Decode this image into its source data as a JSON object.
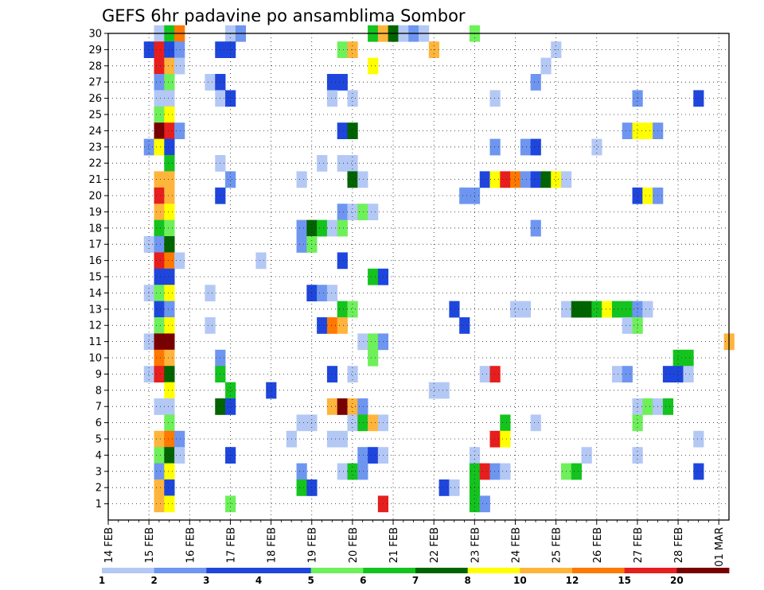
{
  "chart_data": {
    "type": "heatmap",
    "title": "GEFS 6hr padavine po ansamblima Sombor",
    "y_members": [
      1,
      30
    ],
    "x_start": "2018-02-14 00:00",
    "x_end": "2018-03-01 06:00",
    "x_ticks": [
      "14 FEB",
      "15 FEB",
      "16 FEB",
      "17 FEB",
      "18 FEB",
      "19 FEB",
      "20 FEB",
      "21 FEB",
      "22 FEB",
      "23 FEB",
      "24 FEB",
      "25 FEB",
      "26 FEB",
      "27 FEB",
      "28 FEB",
      "01 MAR"
    ],
    "y_ticks": [
      "1",
      "2",
      "3",
      "4",
      "5",
      "6",
      "7",
      "8",
      "9",
      "10",
      "11",
      "12",
      "13",
      "14",
      "15",
      "16",
      "17",
      "18",
      "19",
      "20",
      "21",
      "22",
      "23",
      "24",
      "25",
      "26",
      "27",
      "28",
      "29",
      "30"
    ],
    "grid": "dotted",
    "legend": {
      "placement": "bottom",
      "labels": [
        "1",
        "2",
        "3",
        "4",
        "5",
        "6",
        "7",
        "8",
        "10",
        "12",
        "15",
        "20"
      ],
      "colors": [
        "#b4c8f5",
        "#6e96f0",
        "#1e46dc",
        "#1e46dc",
        "#6ef05a",
        "#14c31e",
        "#006400",
        "#ffff00",
        "#ffb43c",
        "#ff7800",
        "#e61e1e",
        "#780000"
      ]
    },
    "level_colors": {
      "1": "#b4c8f5",
      "2": "#6e96f0",
      "3": "#1e46dc",
      "5": "#6ef05a",
      "6": "#14c31e",
      "7": "#006400",
      "8": "#ffff00",
      "10": "#ffb43c",
      "12": "#ff7800",
      "15": "#e61e1e",
      "20": "#780000"
    },
    "cells": [
      {
        "m": 30,
        "s": [
          "15 06",
          1
        ],
        "c": [
          [
            "15 06",
            1
          ],
          [
            "15 12",
            6
          ],
          [
            "15 18",
            12
          ],
          [
            "17 00",
            1
          ],
          [
            "17 06",
            2
          ],
          [
            "20 12",
            6
          ],
          [
            "20 18",
            10
          ],
          [
            "21 00",
            7
          ],
          [
            "21 06",
            1
          ],
          [
            "21 12",
            2
          ],
          [
            "21 18",
            1
          ],
          [
            "23 00",
            5
          ]
        ]
      },
      {
        "m": 29,
        "c": [
          [
            "15 00",
            3
          ],
          [
            "15 06",
            15
          ],
          [
            "15 12",
            3
          ],
          [
            "15 18",
            2
          ],
          [
            "16 18",
            3
          ],
          [
            "17 00",
            3
          ],
          [
            "19 18",
            5
          ],
          [
            "20 00",
            10
          ],
          [
            "22 00",
            10
          ],
          [
            "25 00",
            1
          ]
        ]
      },
      {
        "m": 28,
        "c": [
          [
            "15 06",
            15
          ],
          [
            "15 12",
            10
          ],
          [
            "15 18",
            1
          ],
          [
            "20 12",
            8
          ],
          [
            "24 18",
            1
          ]
        ]
      },
      {
        "m": 27,
        "c": [
          [
            "15 06",
            2
          ],
          [
            "15 12",
            5
          ],
          [
            "16 12",
            1
          ],
          [
            "16 18",
            3
          ],
          [
            "19 12",
            3
          ],
          [
            "19 18",
            3
          ],
          [
            "24 12",
            2
          ]
        ]
      },
      {
        "m": 26,
        "c": [
          [
            "15 06",
            1
          ],
          [
            "15 12",
            1
          ],
          [
            "16 18",
            1
          ],
          [
            "17 00",
            3
          ],
          [
            "19 12",
            1
          ],
          [
            "20 00",
            1
          ],
          [
            "23 12",
            1
          ],
          [
            "27 00",
            2
          ],
          [
            "28 12",
            3
          ]
        ]
      },
      {
        "m": 25,
        "c": [
          [
            "15 06",
            5
          ],
          [
            "15 12",
            8
          ]
        ]
      },
      {
        "m": 24,
        "c": [
          [
            "15 06",
            20
          ],
          [
            "15 12",
            15
          ],
          [
            "15 18",
            2
          ],
          [
            "19 18",
            3
          ],
          [
            "20 00",
            7
          ],
          [
            "26 18",
            2
          ],
          [
            "27 00",
            8
          ],
          [
            "27 06",
            8
          ],
          [
            "27 12",
            2
          ]
        ]
      },
      {
        "m": 23,
        "c": [
          [
            "15 00",
            2
          ],
          [
            "15 06",
            8
          ],
          [
            "15 12",
            3
          ],
          [
            "23 12",
            2
          ],
          [
            "24 06",
            2
          ],
          [
            "24 12",
            3
          ],
          [
            "26 00",
            1
          ]
        ]
      },
      {
        "m": 22,
        "c": [
          [
            "15 12",
            6
          ],
          [
            "16 18",
            1
          ],
          [
            "19 06",
            1
          ],
          [
            "19 18",
            1
          ],
          [
            "20 00",
            1
          ]
        ]
      },
      {
        "m": 21,
        "c": [
          [
            "15 06",
            10
          ],
          [
            "15 12",
            10
          ],
          [
            "17 00",
            2
          ],
          [
            "18 18",
            1
          ],
          [
            "20 00",
            7
          ],
          [
            "20 06",
            1
          ],
          [
            "23 06",
            3
          ],
          [
            "23 12",
            8
          ],
          [
            "23 18",
            15
          ],
          [
            "24 00",
            12
          ],
          [
            "24 06",
            2
          ],
          [
            "24 12",
            3
          ],
          [
            "24 18",
            7
          ],
          [
            "25 00",
            8
          ],
          [
            "25 06",
            1
          ]
        ]
      },
      {
        "m": 20,
        "c": [
          [
            "15 06",
            15
          ],
          [
            "15 12",
            10
          ],
          [
            "16 18",
            3
          ],
          [
            "22 18",
            2
          ],
          [
            "23 00",
            2
          ],
          [
            "27 00",
            3
          ],
          [
            "27 06",
            8
          ],
          [
            "27 12",
            2
          ]
        ]
      },
      {
        "m": 19,
        "c": [
          [
            "15 06",
            10
          ],
          [
            "15 12",
            8
          ],
          [
            "19 18",
            2
          ],
          [
            "20 00",
            1
          ],
          [
            "20 06",
            5
          ],
          [
            "20 12",
            1
          ]
        ]
      },
      {
        "m": 18,
        "c": [
          [
            "15 06",
            6
          ],
          [
            "15 12",
            5
          ],
          [
            "18 18",
            2
          ],
          [
            "19 00",
            7
          ],
          [
            "19 06",
            6
          ],
          [
            "19 12",
            1
          ],
          [
            "19 18",
            5
          ],
          [
            "24 12",
            2
          ]
        ]
      },
      {
        "m": 17,
        "c": [
          [
            "15 00",
            1
          ],
          [
            "15 06",
            2
          ],
          [
            "15 12",
            7
          ],
          [
            "18 18",
            2
          ],
          [
            "19 00",
            5
          ]
        ]
      },
      {
        "m": 16,
        "c": [
          [
            "15 06",
            15
          ],
          [
            "15 12",
            12
          ],
          [
            "15 18",
            1
          ],
          [
            "17 18",
            1
          ],
          [
            "19 18",
            3
          ]
        ]
      },
      {
        "m": 15,
        "c": [
          [
            "15 06",
            3
          ],
          [
            "15 12",
            3
          ],
          [
            "20 12",
            6
          ],
          [
            "20 18",
            3
          ]
        ]
      },
      {
        "m": 14,
        "c": [
          [
            "15 00",
            1
          ],
          [
            "15 06",
            5
          ],
          [
            "15 12",
            8
          ],
          [
            "16 12",
            1
          ],
          [
            "19 00",
            3
          ],
          [
            "19 06",
            2
          ],
          [
            "19 12",
            1
          ]
        ]
      },
      {
        "m": 13,
        "c": [
          [
            "15 06",
            3
          ],
          [
            "15 12",
            2
          ],
          [
            "19 18",
            6
          ],
          [
            "20 00",
            5
          ],
          [
            "22 12",
            3
          ],
          [
            "24 00",
            1
          ],
          [
            "24 06",
            1
          ],
          [
            "25 06",
            1
          ],
          [
            "25 12",
            7
          ],
          [
            "25 18",
            7
          ],
          [
            "26 00",
            6
          ],
          [
            "26 06",
            8
          ],
          [
            "26 12",
            6
          ],
          [
            "26 18",
            6
          ],
          [
            "27 00",
            2
          ],
          [
            "27 06",
            1
          ]
        ]
      },
      {
        "m": 12,
        "c": [
          [
            "15 06",
            5
          ],
          [
            "15 12",
            8
          ],
          [
            "16 12",
            1
          ],
          [
            "19 06",
            3
          ],
          [
            "19 12",
            12
          ],
          [
            "19 18",
            10
          ],
          [
            "22 18",
            3
          ],
          [
            "26 18",
            1
          ],
          [
            "27 00",
            5
          ]
        ]
      },
      {
        "m": 11,
        "c": [
          [
            "15 00",
            1
          ],
          [
            "15 06",
            20
          ],
          [
            "15 12",
            20
          ],
          [
            "20 06",
            1
          ],
          [
            "20 12",
            5
          ],
          [
            "20 18",
            2
          ],
          [
            "29 06",
            10
          ]
        ]
      },
      {
        "m": 10,
        "c": [
          [
            "15 06",
            12
          ],
          [
            "15 12",
            10
          ],
          [
            "16 18",
            2
          ],
          [
            "20 12",
            5
          ],
          [
            "28 00",
            6
          ],
          [
            "28 06",
            6
          ]
        ]
      },
      {
        "m": 9,
        "c": [
          [
            "15 00",
            1
          ],
          [
            "15 06",
            15
          ],
          [
            "15 12",
            7
          ],
          [
            "16 18",
            6
          ],
          [
            "19 12",
            3
          ],
          [
            "20 00",
            1
          ],
          [
            "23 06",
            1
          ],
          [
            "23 12",
            15
          ],
          [
            "26 12",
            1
          ],
          [
            "26 18",
            2
          ],
          [
            "27 18",
            3
          ],
          [
            "28 00",
            3
          ],
          [
            "28 06",
            1
          ]
        ]
      },
      {
        "m": 8,
        "c": [
          [
            "15 12",
            8
          ],
          [
            "17 00",
            6
          ],
          [
            "18 00",
            3
          ],
          [
            "22 00",
            1
          ],
          [
            "22 06",
            1
          ]
        ]
      },
      {
        "m": 7,
        "c": [
          [
            "15 06",
            1
          ],
          [
            "15 12",
            1
          ],
          [
            "16 18",
            7
          ],
          [
            "17 00",
            3
          ],
          [
            "19 12",
            10
          ],
          [
            "19 18",
            20
          ],
          [
            "20 00",
            10
          ],
          [
            "20 06",
            2
          ],
          [
            "27 00",
            1
          ],
          [
            "27 06",
            5
          ],
          [
            "27 12",
            1
          ],
          [
            "27 18",
            6
          ]
        ]
      },
      {
        "m": 6,
        "c": [
          [
            "15 12",
            5
          ],
          [
            "18 18",
            1
          ],
          [
            "19 00",
            1
          ],
          [
            "20 00",
            1
          ],
          [
            "20 06",
            6
          ],
          [
            "20 12",
            10
          ],
          [
            "20 18",
            1
          ],
          [
            "23 18",
            6
          ],
          [
            "24 12",
            1
          ],
          [
            "27 00",
            5
          ]
        ]
      },
      {
        "m": 5,
        "c": [
          [
            "15 06",
            10
          ],
          [
            "15 12",
            12
          ],
          [
            "15 18",
            2
          ],
          [
            "18 12",
            1
          ],
          [
            "19 12",
            1
          ],
          [
            "19 18",
            1
          ],
          [
            "23 12",
            15
          ],
          [
            "23 18",
            8
          ],
          [
            "28 12",
            1
          ]
        ]
      },
      {
        "m": 4,
        "c": [
          [
            "15 06",
            5
          ],
          [
            "15 12",
            7
          ],
          [
            "15 18",
            1
          ],
          [
            "17 00",
            3
          ],
          [
            "20 06",
            2
          ],
          [
            "20 12",
            3
          ],
          [
            "20 18",
            1
          ],
          [
            "23 00",
            1
          ],
          [
            "25 18",
            1
          ],
          [
            "27 00",
            1
          ]
        ]
      },
      {
        "m": 3,
        "c": [
          [
            "15 06",
            2
          ],
          [
            "15 12",
            8
          ],
          [
            "18 18",
            2
          ],
          [
            "19 18",
            1
          ],
          [
            "20 00",
            6
          ],
          [
            "20 06",
            2
          ],
          [
            "23 00",
            6
          ],
          [
            "23 06",
            15
          ],
          [
            "23 12",
            2
          ],
          [
            "23 18",
            1
          ],
          [
            "25 06",
            5
          ],
          [
            "25 12",
            6
          ],
          [
            "28 12",
            3
          ]
        ]
      },
      {
        "m": 2,
        "c": [
          [
            "15 06",
            10
          ],
          [
            "15 12",
            3
          ],
          [
            "18 18",
            6
          ],
          [
            "19 00",
            3
          ],
          [
            "22 06",
            3
          ],
          [
            "22 12",
            1
          ],
          [
            "23 00",
            6
          ]
        ]
      },
      {
        "m": 1,
        "c": [
          [
            "15 06",
            10
          ],
          [
            "15 12",
            8
          ],
          [
            "17 00",
            5
          ],
          [
            "20 18",
            15
          ],
          [
            "23 00",
            6
          ],
          [
            "23 06",
            2
          ]
        ]
      }
    ]
  }
}
